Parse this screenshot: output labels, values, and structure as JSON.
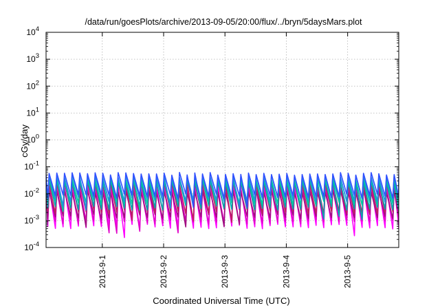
{
  "chart_data": {
    "type": "line",
    "title": "/data/run/goesPlots/archive/2013-09-05/20:00/flux/../bryn/5daysMars.plot",
    "xlabel": "Coordinated Universal Time (UTC)",
    "ylabel": "cGy/day",
    "y_scale": "log",
    "ylim": [
      0.0001,
      10000
    ],
    "xlim": [
      "2013-08-31 02:00",
      "2013-09-05 20:00"
    ],
    "x_ticks": [
      "2013-9-1",
      "2013-9-2",
      "2013-9-3",
      "2013-9-4",
      "2013-9-5"
    ],
    "x_tick_dates": [
      "2013-09-01",
      "2013-09-02",
      "2013-09-03",
      "2013-09-04",
      "2013-09-05"
    ],
    "y_ticks": [
      {
        "base": "10",
        "exp": "4",
        "value": 10000
      },
      {
        "base": "10",
        "exp": "3",
        "value": 1000
      },
      {
        "base": "10",
        "exp": "2",
        "value": 100
      },
      {
        "base": "10",
        "exp": "1",
        "value": 10
      },
      {
        "base": "10",
        "exp": "0",
        "value": 1
      },
      {
        "base": "10",
        "exp": "-1",
        "value": 0.1
      },
      {
        "base": "10",
        "exp": "-2",
        "value": 0.01
      },
      {
        "base": "10",
        "exp": "-3",
        "value": 0.001
      },
      {
        "base": "10",
        "exp": "-4",
        "value": 0.0001
      }
    ],
    "grid": true,
    "legend": "none",
    "oscillation_period_hours": 3,
    "series": [
      {
        "color": "#ff00ff",
        "peak": 0.02,
        "trough": 0.0006
      },
      {
        "color": "#e000c8",
        "peak": 0.015,
        "trough": 0.0009
      },
      {
        "color": "#a01080",
        "peak": 0.012,
        "trough": 0.0014
      },
      {
        "color": "#c02060",
        "peak": 0.025,
        "trough": 0.0022
      },
      {
        "color": "#00a8b0",
        "peak": 0.03,
        "trough": 0.003
      },
      {
        "color": "#00c8a0",
        "peak": 0.035,
        "trough": 0.0045
      },
      {
        "color": "#2090e0",
        "peak": 0.045,
        "trough": 0.006
      },
      {
        "color": "#3050ff",
        "peak": 0.055,
        "trough": 0.008
      }
    ]
  }
}
